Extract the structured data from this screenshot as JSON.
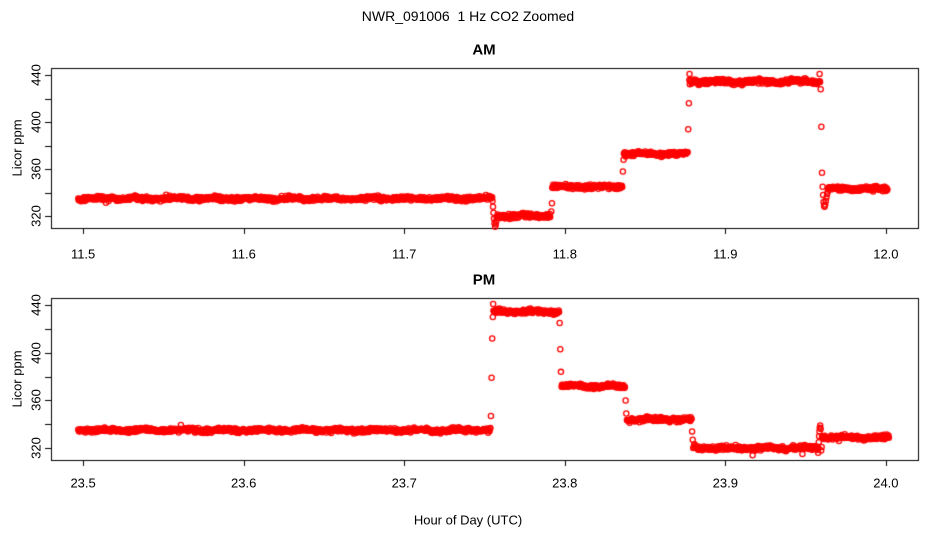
{
  "figure": {
    "main_title": "NWR_091006  1 Hz CO2 Zoomed",
    "xlabel": "Hour of Day (UTC)",
    "point_color": "#ff0000",
    "axis_color": "#000000"
  },
  "chart_data": [
    {
      "type": "scatter",
      "title": "AM",
      "ylabel": "Licor ppm",
      "marker": "open-circle",
      "color": "#ff0000",
      "xlim": [
        11.48,
        12.02
      ],
      "ylim": [
        310,
        446
      ],
      "xticks": {
        "values": [
          11.5,
          11.6,
          11.7,
          11.8,
          11.9,
          12.0
        ],
        "labels": [
          "11.5",
          "11.6",
          "11.7",
          "11.8",
          "11.9",
          "12.0"
        ]
      },
      "yticks": {
        "values": [
          320,
          340,
          360,
          380,
          400,
          420,
          440
        ],
        "labels": [
          "320",
          "",
          "360",
          "",
          "400",
          "",
          "440"
        ]
      },
      "sample_rate_hz": 1,
      "segments": [
        {
          "t0": 11.497,
          "t1": 11.7548,
          "value": 335.0,
          "sd": 1.5
        },
        {
          "t0": 11.7576,
          "t1": 11.7912,
          "value": 320.5,
          "sd": 1.8
        },
        {
          "t0": 11.7922,
          "t1": 11.836,
          "value": 345.0,
          "sd": 1.5
        },
        {
          "t0": 11.8368,
          "t1": 11.8767,
          "value": 373.0,
          "sd": 1.5
        },
        {
          "t0": 11.8776,
          "t1": 11.9588,
          "value": 434.5,
          "sd": 1.7
        },
        {
          "t0": 11.964,
          "t1": 12.001,
          "value": 343.5,
          "sd": 1.5
        }
      ],
      "transition_points": [
        [
          11.755,
          333
        ],
        [
          11.7553,
          328
        ],
        [
          11.7556,
          323
        ],
        [
          11.7559,
          318
        ],
        [
          11.7562,
          314
        ],
        [
          11.7566,
          311
        ],
        [
          11.757,
          313
        ],
        [
          11.7574,
          316
        ],
        [
          11.7916,
          324
        ],
        [
          11.792,
          331
        ],
        [
          11.8362,
          358
        ],
        [
          11.8366,
          368
        ],
        [
          11.8769,
          394
        ],
        [
          11.8773,
          416
        ],
        [
          11.8777,
          441
        ],
        [
          11.9587,
          441
        ],
        [
          11.959,
          434
        ],
        [
          11.9594,
          428
        ],
        [
          11.9598,
          396
        ],
        [
          11.9602,
          357
        ],
        [
          11.9606,
          345
        ],
        [
          11.9609,
          338
        ],
        [
          11.9612,
          332
        ],
        [
          11.9615,
          329
        ],
        [
          11.9618,
          328
        ],
        [
          11.9622,
          330
        ],
        [
          11.9626,
          333
        ],
        [
          11.963,
          336
        ],
        [
          11.9634,
          339
        ],
        [
          11.9638,
          341
        ]
      ]
    },
    {
      "type": "scatter",
      "title": "PM",
      "ylabel": "Licor ppm",
      "marker": "open-circle",
      "color": "#ff0000",
      "xlim": [
        23.48,
        24.02
      ],
      "ylim": [
        310,
        446
      ],
      "xticks": {
        "values": [
          23.5,
          23.6,
          23.7,
          23.8,
          23.9,
          24.0
        ],
        "labels": [
          "23.5",
          "23.6",
          "23.7",
          "23.8",
          "23.9",
          "24.0"
        ]
      },
      "yticks": {
        "values": [
          320,
          340,
          360,
          380,
          400,
          420,
          440
        ],
        "labels": [
          "320",
          "",
          "360",
          "",
          "400",
          "",
          "440"
        ]
      },
      "sample_rate_hz": 1,
      "segments": [
        {
          "t0": 23.497,
          "t1": 23.7538,
          "value": 335.0,
          "sd": 1.5
        },
        {
          "t0": 23.7556,
          "t1": 23.7966,
          "value": 434.5,
          "sd": 1.7
        },
        {
          "t0": 23.798,
          "t1": 23.8377,
          "value": 372.0,
          "sd": 1.5
        },
        {
          "t0": 23.8387,
          "t1": 23.8791,
          "value": 344.0,
          "sd": 1.5
        },
        {
          "t0": 23.88,
          "t1": 23.9576,
          "value": 320.0,
          "sd": 1.8
        },
        {
          "t0": 23.9602,
          "t1": 24.002,
          "value": 329.0,
          "sd": 1.5
        }
      ],
      "transition_points": [
        [
          23.754,
          347
        ],
        [
          23.7544,
          379
        ],
        [
          23.7548,
          412
        ],
        [
          23.7552,
          430
        ],
        [
          23.7554,
          441
        ],
        [
          23.7968,
          425
        ],
        [
          23.7972,
          403
        ],
        [
          23.7976,
          384
        ],
        [
          23.8379,
          360
        ],
        [
          23.8383,
          349
        ],
        [
          23.8793,
          334
        ],
        [
          23.8797,
          327
        ],
        [
          23.917,
          314
        ],
        [
          23.948,
          315
        ],
        [
          23.9578,
          316
        ],
        [
          23.958,
          320
        ],
        [
          23.9582,
          325
        ],
        [
          23.9584,
          330
        ],
        [
          23.9586,
          334
        ],
        [
          23.9588,
          337
        ],
        [
          23.9591,
          339
        ],
        [
          23.9594,
          336
        ],
        [
          23.9597,
          318
        ],
        [
          23.96,
          321
        ]
      ]
    }
  ]
}
